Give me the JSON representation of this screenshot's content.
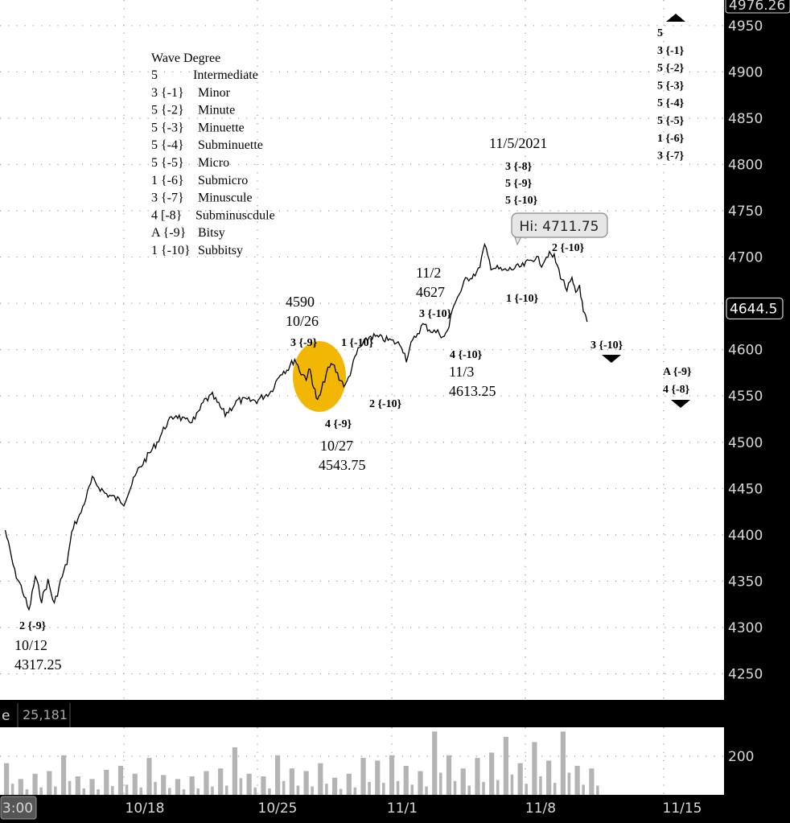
{
  "chart_data": {
    "type": "line",
    "title": "",
    "xlabel": "",
    "ylabel": "",
    "price_axis": {
      "ticks": [
        4250,
        4300,
        4350,
        4400,
        4450,
        4500,
        4550,
        4600,
        4650,
        4700,
        4750,
        4800,
        4850,
        4900,
        4950
      ],
      "top_value_label": "4976.26",
      "current_price_label": "4644.5",
      "current_price": 4644.5,
      "ylim": [
        4227,
        4976.26
      ]
    },
    "time_axis": {
      "ticks": [
        {
          "label": "3:00",
          "boxed": true
        },
        {
          "label": "10/18"
        },
        {
          "label": "10/25"
        },
        {
          "label": "11/1"
        },
        {
          "label": "11/8"
        },
        {
          "label": "11/15"
        }
      ]
    },
    "volume_panel": {
      "label": "e",
      "value": "25,181",
      "ticks": [
        200
      ]
    },
    "price_series": [
      [
        "10/11",
        4405
      ],
      [
        "10/11",
        4360
      ],
      [
        "10/12",
        4340
      ],
      [
        "10/12",
        4317.25
      ],
      [
        "10/12",
        4355
      ],
      [
        "10/13",
        4330
      ],
      [
        "10/13",
        4350
      ],
      [
        "10/13",
        4325
      ],
      [
        "10/14",
        4350
      ],
      [
        "10/14",
        4370
      ],
      [
        "10/14",
        4410
      ],
      [
        "10/15",
        4420
      ],
      [
        "10/15",
        4440
      ],
      [
        "10/15",
        4460
      ],
      [
        "10/16",
        4445
      ],
      [
        "10/17",
        4435
      ],
      [
        "10/18",
        4470
      ],
      [
        "10/18",
        4485
      ],
      [
        "10/19",
        4500
      ],
      [
        "10/19",
        4520
      ],
      [
        "10/20",
        4530
      ],
      [
        "10/20",
        4522
      ],
      [
        "10/21",
        4525
      ],
      [
        "10/21",
        4545
      ],
      [
        "10/22",
        4550
      ],
      [
        "10/22",
        4540
      ],
      [
        "10/22",
        4530
      ],
      [
        "10/23",
        4545
      ],
      [
        "10/24",
        4545
      ],
      [
        "10/25",
        4555
      ],
      [
        "10/25",
        4575
      ],
      [
        "10/26",
        4580
      ],
      [
        "10/26",
        4590
      ],
      [
        "10/26",
        4575
      ],
      [
        "10/27",
        4570
      ],
      [
        "10/27",
        4578
      ],
      [
        "10/27",
        4560
      ],
      [
        "10/27",
        4543.75
      ],
      [
        "10/27",
        4555
      ],
      [
        "10/28",
        4575
      ],
      [
        "10/28",
        4585
      ],
      [
        "10/28",
        4570
      ],
      [
        "10/29",
        4560
      ],
      [
        "10/29",
        4580
      ],
      [
        "10/29",
        4600
      ],
      [
        "10/30",
        4615
      ],
      [
        "10/31",
        4610
      ],
      [
        "11/1",
        4605
      ],
      [
        "11/1",
        4590
      ],
      [
        "11/1",
        4605
      ],
      [
        "11/1",
        4615
      ],
      [
        "11/2",
        4627
      ],
      [
        "11/2",
        4620
      ],
      [
        "11/3",
        4618
      ],
      [
        "11/3",
        4613.25
      ],
      [
        "11/3",
        4625
      ],
      [
        "11/3",
        4650
      ],
      [
        "11/4",
        4660
      ],
      [
        "11/4",
        4675
      ],
      [
        "11/4",
        4680
      ],
      [
        "11/5",
        4685
      ],
      [
        "11/5",
        4711.75
      ],
      [
        "11/5",
        4690
      ],
      [
        "11/6",
        4685
      ],
      [
        "11/7",
        4690
      ],
      [
        "11/8",
        4700
      ],
      [
        "11/8",
        4693
      ],
      [
        "11/8",
        4703
      ],
      [
        "11/9",
        4700
      ],
      [
        "11/9",
        4680
      ],
      [
        "11/9",
        4665
      ],
      [
        "11/10",
        4675
      ],
      [
        "11/10",
        4660
      ],
      [
        "11/10",
        4670
      ],
      [
        "11/10",
        4640
      ],
      [
        "11/10",
        4630
      ]
    ],
    "volume_series": [
      120,
      60,
      80,
      90,
      150,
      70,
      60,
      95,
      110,
      80,
      140,
      75,
      60,
      70,
      90,
      100,
      180,
      80,
      70,
      150,
      100,
      90,
      120,
      65,
      80,
      140,
      130,
      150,
      110,
      90,
      240,
      150,
      100,
      140,
      160,
      220,
      120,
      200,
      130,
      240,
      110,
      100
    ],
    "hi_callout": "Hi: 4711.75",
    "wave_legend": {
      "title": "Wave Degree",
      "rows": [
        {
          "code": "5",
          "name": "Intermediate"
        },
        {
          "code": "3 {-1}",
          "name": "Minor"
        },
        {
          "code": "5 {-2}",
          "name": "Minute"
        },
        {
          "code": "5 {-3}",
          "name": "Minuette"
        },
        {
          "code": "5 {-4}",
          "name": "Subminuette"
        },
        {
          "code": "5 {-5}",
          "name": "Micro"
        },
        {
          "code": "1 {-6}",
          "name": "Submicro"
        },
        {
          "code": "3 {-7}",
          "name": "Minuscule"
        },
        {
          "code": "4 [-8}",
          "name": "Subminuscdule"
        },
        {
          "code": "A {-9}",
          "name": "Bitsy"
        },
        {
          "code": "1 {-10}",
          "name": "Subbitsy"
        }
      ]
    },
    "top_right_stack": [
      "5",
      "3 {-1}",
      "5 {-2}",
      "5 {-3}",
      "5 {-4}",
      "5 {-5}",
      "1 {-6}",
      "3 {-7}"
    ],
    "annotations": [
      {
        "id": "a-4590",
        "text": "4590",
        "bold": false,
        "font": 18
      },
      {
        "id": "a-1026",
        "text": "10/26",
        "bold": false,
        "font": 18
      },
      {
        "id": "a-3m9",
        "text": "3 {-9}",
        "bold": true,
        "font": 14
      },
      {
        "id": "a-1m10a",
        "text": "1 {-10}",
        "bold": true,
        "font": 14
      },
      {
        "id": "a-2m10a",
        "text": "2 {-10}",
        "bold": true,
        "font": 14
      },
      {
        "id": "a-4m9",
        "text": "4 {-9}",
        "bold": true,
        "font": 14
      },
      {
        "id": "a-1027",
        "text": "10/27",
        "bold": false,
        "font": 18
      },
      {
        "id": "a-4543",
        "text": "4543.75",
        "bold": false,
        "font": 18
      },
      {
        "id": "a-112",
        "text": "11/2",
        "bold": false,
        "font": 18
      },
      {
        "id": "a-4627",
        "text": "4627",
        "bold": false,
        "font": 18
      },
      {
        "id": "a-3m10a",
        "text": "3 {-10}",
        "bold": true,
        "font": 14
      },
      {
        "id": "a-4m10",
        "text": "4 {-10}",
        "bold": true,
        "font": 14
      },
      {
        "id": "a-113",
        "text": "11/3",
        "bold": false,
        "font": 18
      },
      {
        "id": "a-4613",
        "text": "4613.25",
        "bold": false,
        "font": 18
      },
      {
        "id": "a-1152021",
        "text": "11/5/2021",
        "bold": false,
        "font": 18
      },
      {
        "id": "a-3m8top",
        "text": "3 {-8}",
        "bold": true,
        "font": 14
      },
      {
        "id": "a-5m9top",
        "text": "5 {-9}",
        "bold": true,
        "font": 14
      },
      {
        "id": "a-5m10top",
        "text": "5 {-10}",
        "bold": true,
        "font": 14
      },
      {
        "id": "a-1m10b",
        "text": "1 {-10}",
        "bold": true,
        "font": 14
      },
      {
        "id": "a-2m10b",
        "text": "2 {-10}",
        "bold": true,
        "font": 14
      },
      {
        "id": "a-3m10b",
        "text": "3 {-10}",
        "bold": true,
        "font": 14
      },
      {
        "id": "a-2m9",
        "text": "2 {-9}",
        "bold": true,
        "font": 14
      },
      {
        "id": "a-1012",
        "text": "10/12",
        "bold": false,
        "font": 18
      },
      {
        "id": "a-4317",
        "text": "4317.25",
        "bold": false,
        "font": 18
      },
      {
        "id": "a-Am9",
        "text": "A {-9}",
        "bold": true,
        "font": 14
      },
      {
        "id": "a-4m8",
        "text": "4 {-8}",
        "bold": true,
        "font": 14
      }
    ],
    "colors": {
      "background": "#ffffff",
      "price_line": "#000000",
      "axis_panel": "#000000",
      "axis_text": "#d8d8d8",
      "grid_dots": "#9a9a9a",
      "highlight_circle": "#f2b705",
      "volume_bars": "#b4b4b4"
    },
    "grid": true
  }
}
